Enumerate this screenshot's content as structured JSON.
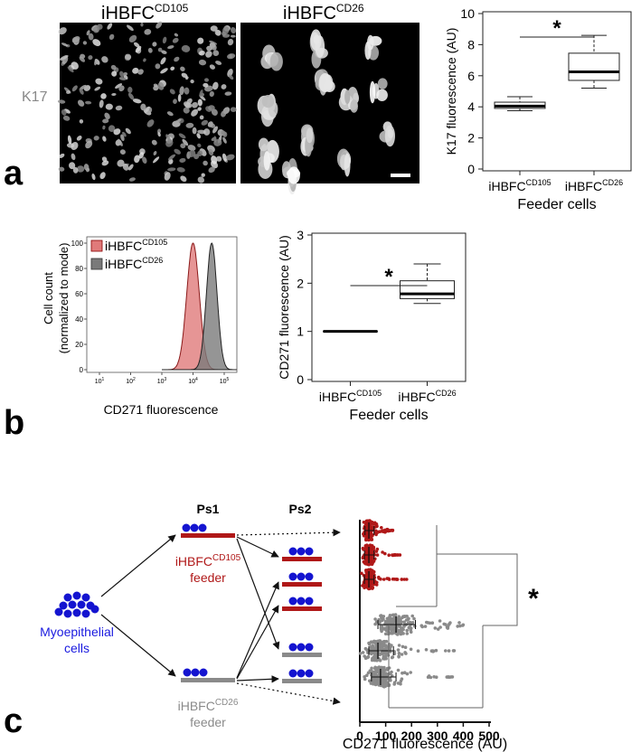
{
  "panel_a": {
    "letter": "a",
    "row_label": "K17",
    "micrographs": [
      {
        "base": "iHBFC",
        "sup": "CD105"
      },
      {
        "base": "iHBFC",
        "sup": "CD26"
      }
    ],
    "chart_data": {
      "type": "box",
      "ylabel": "K17 fluorescence (AU)",
      "xlabel": "Feeder cells",
      "ylim": [
        0,
        10
      ],
      "yticks": [
        0,
        2,
        4,
        6,
        8,
        10
      ],
      "significance": "*",
      "groups": [
        {
          "label_base": "iHBFC",
          "label_sup": "CD105",
          "min": 3.75,
          "q1": 3.9,
          "median": 4.05,
          "q3": 4.3,
          "max": 4.65
        },
        {
          "label_base": "iHBFC",
          "label_sup": "CD26",
          "min": 5.2,
          "q1": 5.7,
          "median": 6.25,
          "q3": 7.45,
          "max": 8.6
        }
      ]
    }
  },
  "panel_b": {
    "letter": "b",
    "histogram": {
      "type": "area",
      "ylabel_line1": "Cell count",
      "ylabel_line2": "(normalized to mode)",
      "xlabel": "CD271 fluorescence",
      "yticks": [
        0,
        20,
        40,
        60,
        80,
        100
      ],
      "xticks": [
        {
          "base": "10",
          "exp": "1"
        },
        {
          "base": "10",
          "exp": "2"
        },
        {
          "base": "10",
          "exp": "3"
        },
        {
          "base": "10",
          "exp": "4"
        },
        {
          "base": "10",
          "exp": "5"
        }
      ],
      "legend": [
        {
          "base": "iHBFC",
          "sup": "CD105",
          "color": "#e07a7a"
        },
        {
          "base": "iHBFC",
          "sup": "CD26",
          "color": "#7a7a7a"
        }
      ],
      "series": [
        {
          "name": "iHBFC CD105",
          "peak_log10": 4.0,
          "width": 0.2
        },
        {
          "name": "iHBFC CD26",
          "peak_log10": 4.6,
          "width": 0.17
        }
      ]
    },
    "chart_data": {
      "type": "box",
      "ylabel": "CD271 fluorescence (AU)",
      "xlabel": "Feeder cells",
      "ylim": [
        0,
        3
      ],
      "yticks": [
        0,
        1,
        2,
        3
      ],
      "significance": "*",
      "groups": [
        {
          "label_base": "iHBFC",
          "label_sup": "CD105",
          "min": 1.0,
          "q1": 1.0,
          "median": 1.0,
          "q3": 1.0,
          "max": 1.0
        },
        {
          "label_base": "iHBFC",
          "label_sup": "CD26",
          "min": 1.58,
          "q1": 1.68,
          "median": 1.78,
          "q3": 2.05,
          "max": 2.4
        }
      ]
    }
  },
  "panel_c": {
    "letter": "c",
    "ps1": "Ps1",
    "ps2": "Ps2",
    "source_line1": "Myoepithelial",
    "source_line2": "cells",
    "feeder1": {
      "base": "iHBFC",
      "sup": "CD105",
      "word": "feeder"
    },
    "feeder2": {
      "base": "iHBFC",
      "sup": "CD26",
      "word": "feeder"
    },
    "significance": "*",
    "chart_data": {
      "type": "scatter",
      "xlabel": "CD271 fluorescence (AU)",
      "xlim": [
        0,
        500
      ],
      "xticks": [
        0,
        100,
        200,
        300,
        400,
        500
      ],
      "rows": [
        {
          "color": "#b01818",
          "median": 35,
          "q1": 20,
          "q3": 55,
          "max": 130
        },
        {
          "color": "#b01818",
          "median": 35,
          "q1": 18,
          "q3": 55,
          "max": 155
        },
        {
          "color": "#b01818",
          "median": 35,
          "q1": 18,
          "q3": 55,
          "max": 185
        },
        {
          "color": "#8a8a8a",
          "median": 140,
          "q1": 70,
          "q3": 215,
          "max": 400
        },
        {
          "color": "#8a8a8a",
          "median": 70,
          "q1": 35,
          "q3": 130,
          "max": 370
        },
        {
          "color": "#8a8a8a",
          "median": 80,
          "q1": 45,
          "q3": 140,
          "max": 365
        }
      ]
    }
  }
}
